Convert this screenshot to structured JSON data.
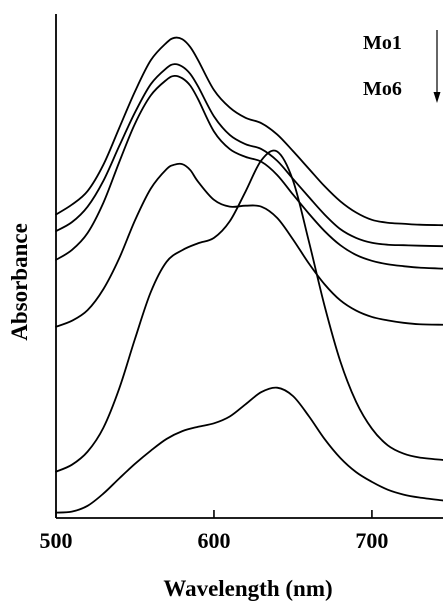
{
  "chart_data": {
    "type": "line",
    "xlabel": "Wavelength (nm)",
    "ylabel": "Absorbance",
    "xlim": [
      500,
      745
    ],
    "ylim": [
      0,
      1
    ],
    "x_ticks": [
      500,
      600,
      700
    ],
    "y_ticks": [],
    "legend": {
      "first_label": "Mo1",
      "last_label": "Mo6",
      "arrow": "down"
    },
    "series": [
      {
        "x": [
          500,
          510,
          520,
          530,
          540,
          550,
          560,
          570,
          575,
          580,
          585,
          590,
          600,
          610,
          620,
          630,
          640,
          650,
          660,
          670,
          680,
          690,
          700,
          710,
          720,
          730,
          745
        ],
        "y": [
          0.622,
          0.642,
          0.67,
          0.724,
          0.799,
          0.874,
          0.938,
          0.974,
          0.984,
          0.981,
          0.965,
          0.938,
          0.877,
          0.841,
          0.82,
          0.809,
          0.786,
          0.752,
          0.716,
          0.68,
          0.649,
          0.626,
          0.611,
          0.605,
          0.603,
          0.601,
          0.6
        ]
      },
      {
        "x": [
          500,
          510,
          520,
          530,
          540,
          550,
          560,
          570,
          575,
          580,
          585,
          590,
          600,
          610,
          620,
          630,
          640,
          650,
          660,
          670,
          680,
          690,
          700,
          710,
          720,
          730,
          745
        ],
        "y": [
          0.588,
          0.606,
          0.638,
          0.691,
          0.762,
          0.831,
          0.889,
          0.922,
          0.93,
          0.925,
          0.91,
          0.884,
          0.823,
          0.785,
          0.766,
          0.756,
          0.732,
          0.695,
          0.658,
          0.622,
          0.592,
          0.574,
          0.564,
          0.56,
          0.559,
          0.558,
          0.557
        ]
      },
      {
        "x": [
          500,
          510,
          520,
          530,
          540,
          550,
          560,
          570,
          575,
          580,
          585,
          590,
          600,
          610,
          620,
          630,
          640,
          650,
          660,
          670,
          680,
          690,
          700,
          710,
          720,
          730,
          745
        ],
        "y": [
          0.529,
          0.549,
          0.584,
          0.646,
          0.729,
          0.808,
          0.866,
          0.898,
          0.906,
          0.901,
          0.886,
          0.858,
          0.792,
          0.756,
          0.74,
          0.73,
          0.703,
          0.663,
          0.624,
          0.588,
          0.559,
          0.539,
          0.527,
          0.52,
          0.516,
          0.513,
          0.511
        ]
      },
      {
        "x": [
          500,
          510,
          520,
          530,
          540,
          550,
          560,
          570,
          575,
          580,
          585,
          590,
          600,
          610,
          620,
          630,
          640,
          650,
          660,
          670,
          680,
          690,
          700,
          710,
          720,
          730,
          745
        ],
        "y": [
          0.392,
          0.404,
          0.426,
          0.469,
          0.532,
          0.61,
          0.675,
          0.715,
          0.724,
          0.725,
          0.713,
          0.689,
          0.652,
          0.638,
          0.64,
          0.638,
          0.615,
          0.571,
          0.522,
          0.479,
          0.446,
          0.425,
          0.412,
          0.405,
          0.4,
          0.397,
          0.396
        ]
      },
      {
        "x": [
          500,
          510,
          520,
          530,
          540,
          550,
          560,
          570,
          580,
          590,
          600,
          610,
          620,
          630,
          640,
          650,
          660,
          670,
          680,
          690,
          700,
          710,
          720,
          730,
          745
        ],
        "y": [
          0.095,
          0.109,
          0.136,
          0.185,
          0.265,
          0.367,
          0.463,
          0.525,
          0.549,
          0.563,
          0.574,
          0.608,
          0.669,
          0.733,
          0.751,
          0.692,
          0.568,
          0.435,
          0.321,
          0.238,
          0.183,
          0.149,
          0.132,
          0.124,
          0.119
        ]
      },
      {
        "x": [
          500,
          510,
          520,
          530,
          540,
          550,
          560,
          570,
          580,
          590,
          600,
          610,
          620,
          630,
          640,
          650,
          660,
          670,
          680,
          690,
          700,
          710,
          720,
          730,
          745
        ],
        "y": [
          0.011,
          0.013,
          0.025,
          0.05,
          0.081,
          0.111,
          0.138,
          0.162,
          0.178,
          0.187,
          0.194,
          0.208,
          0.233,
          0.258,
          0.267,
          0.25,
          0.209,
          0.162,
          0.123,
          0.094,
          0.074,
          0.058,
          0.048,
          0.042,
          0.036
        ]
      }
    ]
  }
}
